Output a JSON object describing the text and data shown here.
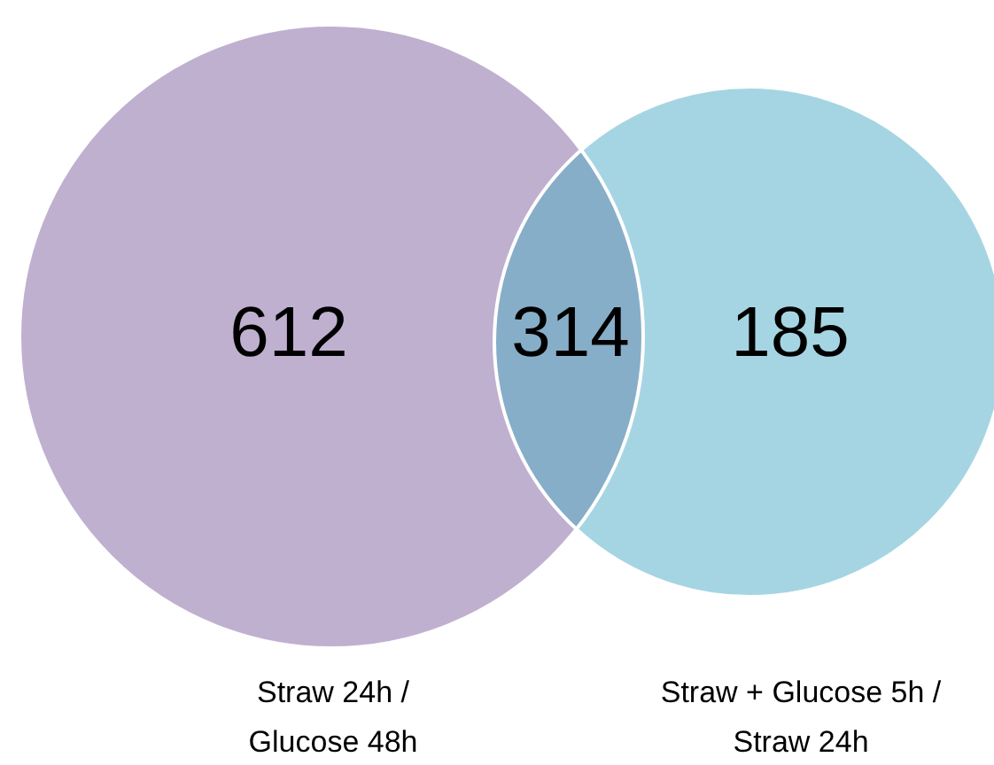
{
  "chart_data": {
    "type": "other",
    "categories": [
      "Straw 24h / Glucose 48h",
      null,
      "Straw + Glucose 5h / Straw 24h"
    ],
    "values": [
      612,
      314,
      185
    ],
    "data_labels": true,
    "colors": [
      "#bfb0d0",
      "#87aec8",
      "#a5d5e2"
    ]
  }
}
